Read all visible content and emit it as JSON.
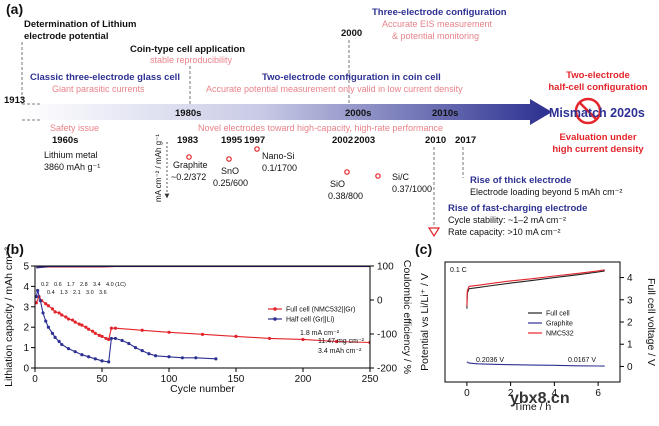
{
  "timeline": {
    "label": "(a)",
    "above": [
      {
        "title": [
          "Determination of Lithium",
          "electrode potential"
        ]
      },
      {
        "title": [
          "Classic three-electrode glass cell"
        ],
        "note": [
          "Giant parasitic currents"
        ]
      },
      {
        "title": [
          "Coin-type cell application"
        ],
        "note": [
          "stable reproducibility"
        ]
      },
      {
        "year": "2000",
        "title": [
          "Three-electrode configuration"
        ],
        "note": [
          "Accurate EIS measurement",
          "& potential monitoring"
        ]
      },
      {
        "title": [
          "Two-electrode configuration in coin cell"
        ],
        "note": [
          "Accurate potential measurement only valid in low current density"
        ]
      },
      {
        "title": [
          "Two-electrode",
          "half-cell configuration"
        ],
        "note": [
          "Evaluation under",
          "high current density"
        ]
      }
    ],
    "arrow": {
      "labels": [
        "1913",
        "1980s",
        "2000s",
        "2010s"
      ],
      "end": "Mismatch 2020s"
    },
    "below": {
      "safety": {
        "year": "1960s",
        "note": "Safety issue",
        "material": [
          "Lithium metal",
          "3860 mAh g⁻¹"
        ]
      },
      "novel": "Novel electrodes toward high-capacity, high-rate performance",
      "axis_label": "mA cm⁻² / mAh g⁻¹",
      "materials": [
        {
          "year": "1983",
          "name": "Graphite",
          "spec": "~0.2/372"
        },
        {
          "year": "1995",
          "name": "SnO",
          "spec": "0.25/600"
        },
        {
          "year": "1997",
          "name": "Nano-Si",
          "spec": "0.1/1700"
        },
        {
          "year": "2002",
          "name": "SiO",
          "spec": "0.38/800"
        },
        {
          "year": "2003",
          "name": "Si/C",
          "spec": "0.37/1000"
        }
      ],
      "trends": [
        {
          "year": "2010",
          "title": "Rise of fast-charging electrode",
          "notes": [
            "Cycle stability: ~1–2 mA cm⁻²",
            "Rate capacity: >10 mA cm⁻²"
          ]
        },
        {
          "year": "2017",
          "title": "Rise of thick electrode",
          "notes": [
            "Electrode loading beyond 5 mAh cm⁻²"
          ]
        }
      ]
    }
  },
  "watermark": "ybx8.cn",
  "chart_data": [
    {
      "type": "line",
      "panel": "(b)",
      "xlabel": "Cycle number",
      "ylabel": "Lithiation capacity / mAh cm⁻²",
      "y2label": "Coulombic efficiency / %",
      "xlim": [
        0,
        250
      ],
      "xticks": [
        0,
        50,
        100,
        150,
        200,
        250
      ],
      "ylim": [
        0,
        5
      ],
      "yticks": [
        0,
        1,
        2,
        3,
        4,
        5
      ],
      "y2lim": [
        -200,
        100
      ],
      "y2ticks": [
        -200,
        -100,
        0,
        100
      ],
      "legend": "right",
      "series": [
        {
          "name": "Full cell (NMC532||Gr)",
          "color": "#e3242b",
          "marker": true,
          "x": [
            1,
            3,
            5,
            8,
            10,
            13,
            15,
            18,
            20,
            23,
            25,
            28,
            30,
            33,
            35,
            38,
            40,
            43,
            45,
            48,
            50,
            53,
            55,
            57,
            60,
            80,
            100,
            125,
            150,
            175,
            200,
            225,
            250
          ],
          "values": [
            3.2,
            3.5,
            3.3,
            3.15,
            3.05,
            2.9,
            2.75,
            2.7,
            2.6,
            2.5,
            2.4,
            2.35,
            2.25,
            2.15,
            2.1,
            2.0,
            1.9,
            1.8,
            1.7,
            1.6,
            1.55,
            1.45,
            1.4,
            1.95,
            1.95,
            1.85,
            1.75,
            1.65,
            1.55,
            1.45,
            1.4,
            1.3,
            1.25
          ]
        },
        {
          "name": "Half cell (Gr||Li)",
          "color": "#2e3192",
          "marker": true,
          "x": [
            1,
            2,
            4,
            6,
            8,
            10,
            13,
            15,
            18,
            20,
            25,
            30,
            35,
            40,
            45,
            50,
            55,
            57,
            60,
            65,
            70,
            75,
            80,
            85,
            90,
            100,
            110,
            120,
            135
          ],
          "values": [
            3.5,
            3.8,
            3.3,
            2.7,
            2.3,
            2.0,
            1.7,
            1.5,
            1.3,
            1.15,
            0.95,
            0.8,
            0.65,
            0.55,
            0.45,
            0.35,
            0.3,
            1.45,
            1.45,
            1.35,
            1.2,
            1.0,
            0.85,
            0.7,
            0.6,
            0.55,
            0.5,
            0.5,
            0.45
          ]
        },
        {
          "axis": "y2",
          "color": "#e3242b",
          "marker": false,
          "x": [
            1,
            10,
            20,
            30,
            40,
            50,
            60,
            100,
            150,
            200,
            250
          ],
          "values": [
            96,
            98,
            98,
            98,
            98,
            98,
            99,
            99,
            99,
            99,
            99
          ]
        },
        {
          "axis": "y2",
          "color": "#2e3192",
          "marker": false,
          "x": [
            1,
            10,
            20,
            30,
            40,
            50,
            60,
            100,
            150,
            200,
            250
          ],
          "values": [
            95,
            99,
            99,
            99,
            99,
            99,
            99.5,
            99.5,
            99.5,
            99.5,
            99.5
          ]
        }
      ],
      "rate_labels": [
        [
          "0.2",
          "0.6",
          "1.7",
          "2.8",
          "3.4",
          "4.0 (1C)"
        ],
        [
          "0.4",
          "1.3",
          "2.1",
          "3.0",
          "3.6"
        ]
      ],
      "annotations": [
        "1.8 mA cm⁻²",
        "11.47 mg cm⁻²",
        "3.4 mAh cm⁻²"
      ]
    },
    {
      "type": "line",
      "panel": "(c)",
      "xlabel": "Time / h",
      "ylabel": "Potential vs Li/Li⁺ / V",
      "y2label": "Full cell voltage / V",
      "xlim": [
        -1,
        7
      ],
      "xticks": [
        0,
        2,
        4,
        6
      ],
      "ylim": [
        -0.7,
        4.7
      ],
      "yticks": [
        0,
        1,
        2,
        3,
        4
      ],
      "ytick_side": "right",
      "legend": "right",
      "series": [
        {
          "name": "Full cell",
          "color": "#222222",
          "marker": false,
          "x": [
            0,
            0.02,
            0.1,
            0.5,
            1,
            2,
            3,
            4,
            5,
            6,
            6.3
          ],
          "values": [
            2.6,
            3.3,
            3.5,
            3.55,
            3.62,
            3.75,
            3.87,
            4.0,
            4.12,
            4.25,
            4.3
          ]
        },
        {
          "name": "Graphite",
          "color": "#2e3192",
          "marker": false,
          "x": [
            0,
            0.1,
            0.5,
            1,
            2,
            3,
            4,
            5,
            6,
            6.3
          ],
          "values": [
            0.2036,
            0.15,
            0.12,
            0.1,
            0.08,
            0.06,
            0.05,
            0.03,
            0.02,
            0.0167
          ]
        },
        {
          "name": "NMC532",
          "color": "#e3242b",
          "marker": false,
          "x": [
            0,
            0.02,
            0.1,
            0.5,
            1,
            2,
            3,
            4,
            5,
            6,
            6.3
          ],
          "values": [
            2.7,
            3.4,
            3.6,
            3.65,
            3.72,
            3.85,
            3.95,
            4.07,
            4.18,
            4.3,
            4.35
          ]
        }
      ],
      "annotations": [
        "0.1 C",
        "0.2036 V",
        "0.0167 V"
      ]
    }
  ]
}
